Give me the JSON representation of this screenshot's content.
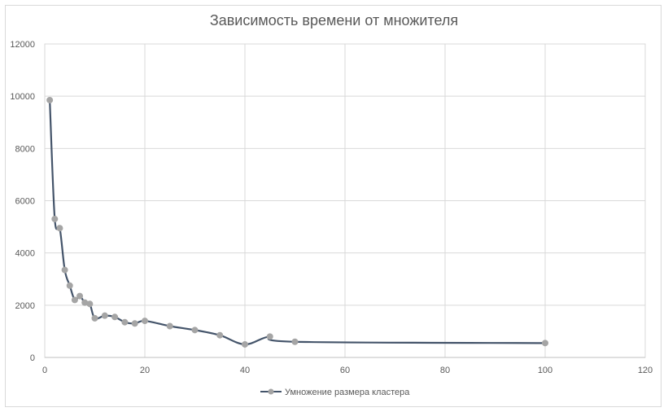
{
  "chart_data": {
    "type": "scatter",
    "title": "Зависимость времени от множителя",
    "xlabel": "",
    "ylabel": "",
    "xlim": [
      0,
      120
    ],
    "ylim": [
      0,
      12000
    ],
    "x_ticks": [
      "0",
      "20",
      "40",
      "60",
      "80",
      "100",
      "120"
    ],
    "y_ticks": [
      "0",
      "2000",
      "4000",
      "6000",
      "8000",
      "10000",
      "12000"
    ],
    "grid": true,
    "legend_position": "bottom",
    "series": [
      {
        "name": "Умножение размера кластера",
        "color": "#44546a",
        "marker_color": "#a5a5a5",
        "x": [
          1,
          2,
          3,
          4,
          5,
          6,
          7,
          8,
          9,
          10,
          12,
          14,
          16,
          18,
          20,
          25,
          30,
          35,
          40,
          45,
          50,
          100
        ],
        "y": [
          9850,
          5300,
          4950,
          3350,
          2750,
          2200,
          2350,
          2100,
          2050,
          1500,
          1600,
          1550,
          1350,
          1300,
          1400,
          1200,
          1050,
          850,
          500,
          800,
          600,
          550
        ]
      }
    ]
  }
}
